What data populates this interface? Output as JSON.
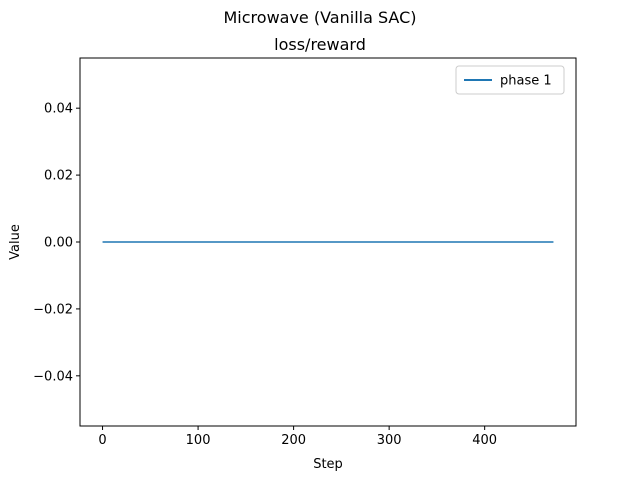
{
  "chart_data": {
    "type": "line",
    "suptitle": "Microwave (Vanilla SAC)",
    "title": "loss/reward",
    "xlabel": "Step",
    "ylabel": "Value",
    "xlim": [
      -23.6,
      495.6
    ],
    "ylim": [
      -0.055,
      0.055
    ],
    "xticks": [
      0,
      100,
      200,
      300,
      400
    ],
    "xtick_labels": [
      "0",
      "100",
      "200",
      "300",
      "400"
    ],
    "yticks": [
      -0.04,
      -0.02,
      0.0,
      0.02,
      0.04
    ],
    "ytick_labels": [
      "−0.04",
      "−0.02",
      "0.00",
      "0.02",
      "0.04"
    ],
    "grid": false,
    "legend_position": "upper right",
    "series": [
      {
        "name": "phase 1",
        "color": "#1f77b4",
        "x": [
          0,
          472
        ],
        "y": [
          0.0,
          0.0
        ]
      }
    ]
  }
}
